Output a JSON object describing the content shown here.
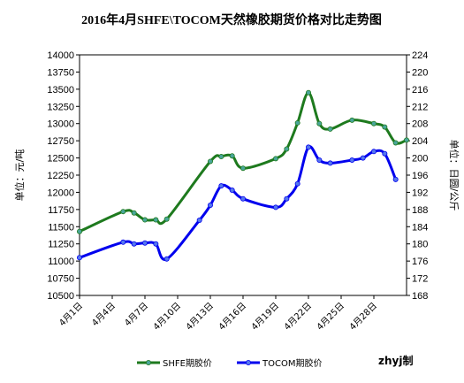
{
  "chart_data": {
    "type": "line",
    "title": "2016年4月SHFE\\TOCOM天然橡胶期货价格对比走势图",
    "ylabel_left": "单位：元/吨",
    "ylabel_right": "单位：日圆/公斤",
    "ylim_left": [
      10500,
      14000
    ],
    "yticks_left": [
      "10500",
      "10750",
      "11000",
      "11250",
      "11500",
      "11750",
      "12000",
      "12250",
      "12500",
      "12750",
      "13000",
      "13250",
      "13500",
      "13750",
      "14000"
    ],
    "ylim_right": [
      168,
      224
    ],
    "yticks_right": [
      "168",
      "172",
      "176",
      "180",
      "184",
      "188",
      "192",
      "196",
      "200",
      "204",
      "208",
      "212",
      "216",
      "220",
      "224"
    ],
    "xlim": [
      1,
      31
    ],
    "xticks": [
      {
        "x": 1,
        "label": "4月1日"
      },
      {
        "x": 4,
        "label": "4月4日"
      },
      {
        "x": 7,
        "label": "4月7日"
      },
      {
        "x": 10,
        "label": "4月10日"
      },
      {
        "x": 13,
        "label": "4月13日"
      },
      {
        "x": 16,
        "label": "4月16日"
      },
      {
        "x": 19,
        "label": "4月19日"
      },
      {
        "x": 22,
        "label": "4月22日"
      },
      {
        "x": 25,
        "label": "4月25日"
      },
      {
        "x": 28,
        "label": "4月28日"
      }
    ],
    "grid": false,
    "legend_position": "bottom",
    "series": [
      {
        "name": "SHFE期胶价",
        "axis": "left",
        "color": "#1e7a1e",
        "marker_color": "#4aa69a",
        "x": [
          1,
          5,
          6,
          7,
          8,
          9,
          13,
          14,
          15,
          16,
          19,
          20,
          21,
          22,
          23,
          24,
          26,
          28,
          29,
          30,
          31
        ],
        "values": [
          11430,
          11720,
          11700,
          11600,
          11600,
          11610,
          12450,
          12520,
          12530,
          12350,
          12490,
          12630,
          13010,
          13450,
          13000,
          12920,
          13050,
          13000,
          12950,
          12720,
          12760
        ]
      },
      {
        "name": "TOCOM期胶价",
        "axis": "right",
        "color": "#0000ee",
        "marker_color": "#5577ee",
        "x": [
          1,
          5,
          6,
          7,
          8,
          9,
          12,
          13,
          14,
          15,
          16,
          19,
          20,
          21,
          22,
          23,
          24,
          26,
          27,
          28,
          29,
          30
        ],
        "values": [
          176.8,
          180.4,
          180.0,
          180.2,
          180.0,
          176.5,
          185.5,
          189.0,
          193.5,
          192.5,
          190.5,
          188.5,
          190.5,
          194.0,
          202.5,
          199.5,
          198.8,
          199.5,
          200.0,
          201.5,
          201.0,
          195.0
        ]
      }
    ],
    "credit": "zhyj制"
  }
}
